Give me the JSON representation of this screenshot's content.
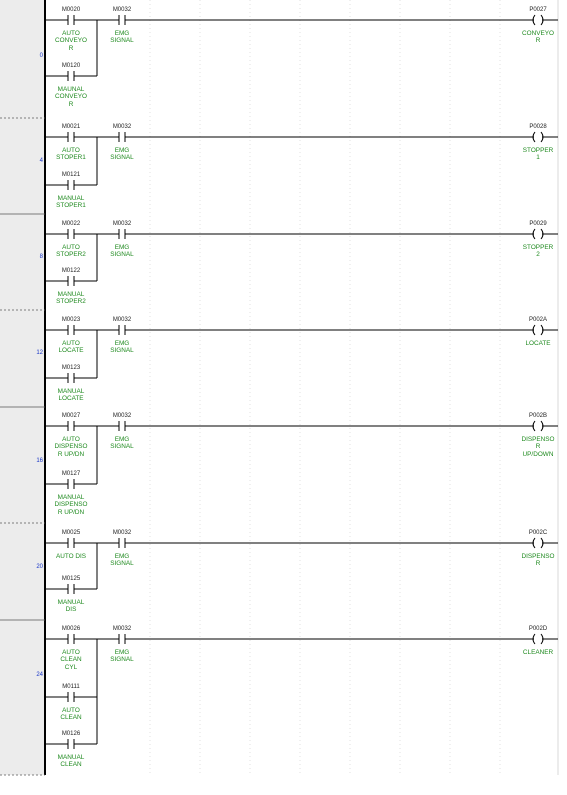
{
  "colors": {
    "rail": "#000000",
    "wire": "#000000",
    "grid": "#cfcfcf",
    "step_number": "#1a37c8",
    "comment": "#1f8a1f",
    "address": "#222222",
    "gutter": "#ececec"
  },
  "rungs": [
    {
      "step": "0",
      "contacts": [
        {
          "address": "M0020",
          "comment": "AUTO\nCONVEYO\nR"
        },
        {
          "address": "M0032",
          "comment": "EMG\nSIGNAL"
        }
      ],
      "branches": [
        {
          "address": "M0120",
          "comment": "MAUNAL\nCONVEYO\nR"
        }
      ],
      "coil": {
        "address": "P0027",
        "comment": "CONVEYO\nR"
      }
    },
    {
      "step": "4",
      "contacts": [
        {
          "address": "M0021",
          "comment": "AUTO\nSTOPER1"
        },
        {
          "address": "M0032",
          "comment": "EMG\nSIGNAL"
        }
      ],
      "branches": [
        {
          "address": "M0121",
          "comment": "MANUAL\nSTOPER1"
        }
      ],
      "coil": {
        "address": "P0028",
        "comment": "STOPPER\n1"
      }
    },
    {
      "step": "8",
      "contacts": [
        {
          "address": "M0022",
          "comment": "AUTO\nSTOPER2"
        },
        {
          "address": "M0032",
          "comment": "EMG\nSIGNAL"
        }
      ],
      "branches": [
        {
          "address": "M0122",
          "comment": "MANUAL\nSTOPER2"
        }
      ],
      "coil": {
        "address": "P0029",
        "comment": "STOPPER\n2"
      }
    },
    {
      "step": "12",
      "contacts": [
        {
          "address": "M0023",
          "comment": "AUTO\nLOCATE"
        },
        {
          "address": "M0032",
          "comment": "EMG\nSIGNAL"
        }
      ],
      "branches": [
        {
          "address": "M0123",
          "comment": "MANUAL\nLOCATE"
        }
      ],
      "coil": {
        "address": "P002A",
        "comment": "LOCATE"
      }
    },
    {
      "step": "16",
      "contacts": [
        {
          "address": "M0027",
          "comment": "AUTO\nDISPENSO\nR UP/DN"
        },
        {
          "address": "M0032",
          "comment": "EMG\nSIGNAL"
        }
      ],
      "branches": [
        {
          "address": "M0127",
          "comment": "MANUAL\nDISPENSO\nR UP/DN"
        }
      ],
      "coil": {
        "address": "P002B",
        "comment": "DISPENSO\nR\nUP/DOWN"
      }
    },
    {
      "step": "20",
      "contacts": [
        {
          "address": "M0025",
          "comment": "AUTO DIS"
        },
        {
          "address": "M0032",
          "comment": "EMG\nSIGNAL"
        }
      ],
      "branches": [
        {
          "address": "M0125",
          "comment": "MANUAL\nDIS"
        }
      ],
      "coil": {
        "address": "P002C",
        "comment": "DISPENSO\nR"
      }
    },
    {
      "step": "24",
      "contacts": [
        {
          "address": "M0026",
          "comment": "AUTO\nCLEAN\nCYL"
        },
        {
          "address": "M0032",
          "comment": "EMG\nSIGNAL"
        }
      ],
      "branches": [
        {
          "address": "M0111",
          "comment": "AUTO\nCLEAN"
        },
        {
          "address": "M0126",
          "comment": "MANUAL\nCLEAN"
        }
      ],
      "coil": {
        "address": "P002D",
        "comment": "CLEANER"
      }
    }
  ]
}
